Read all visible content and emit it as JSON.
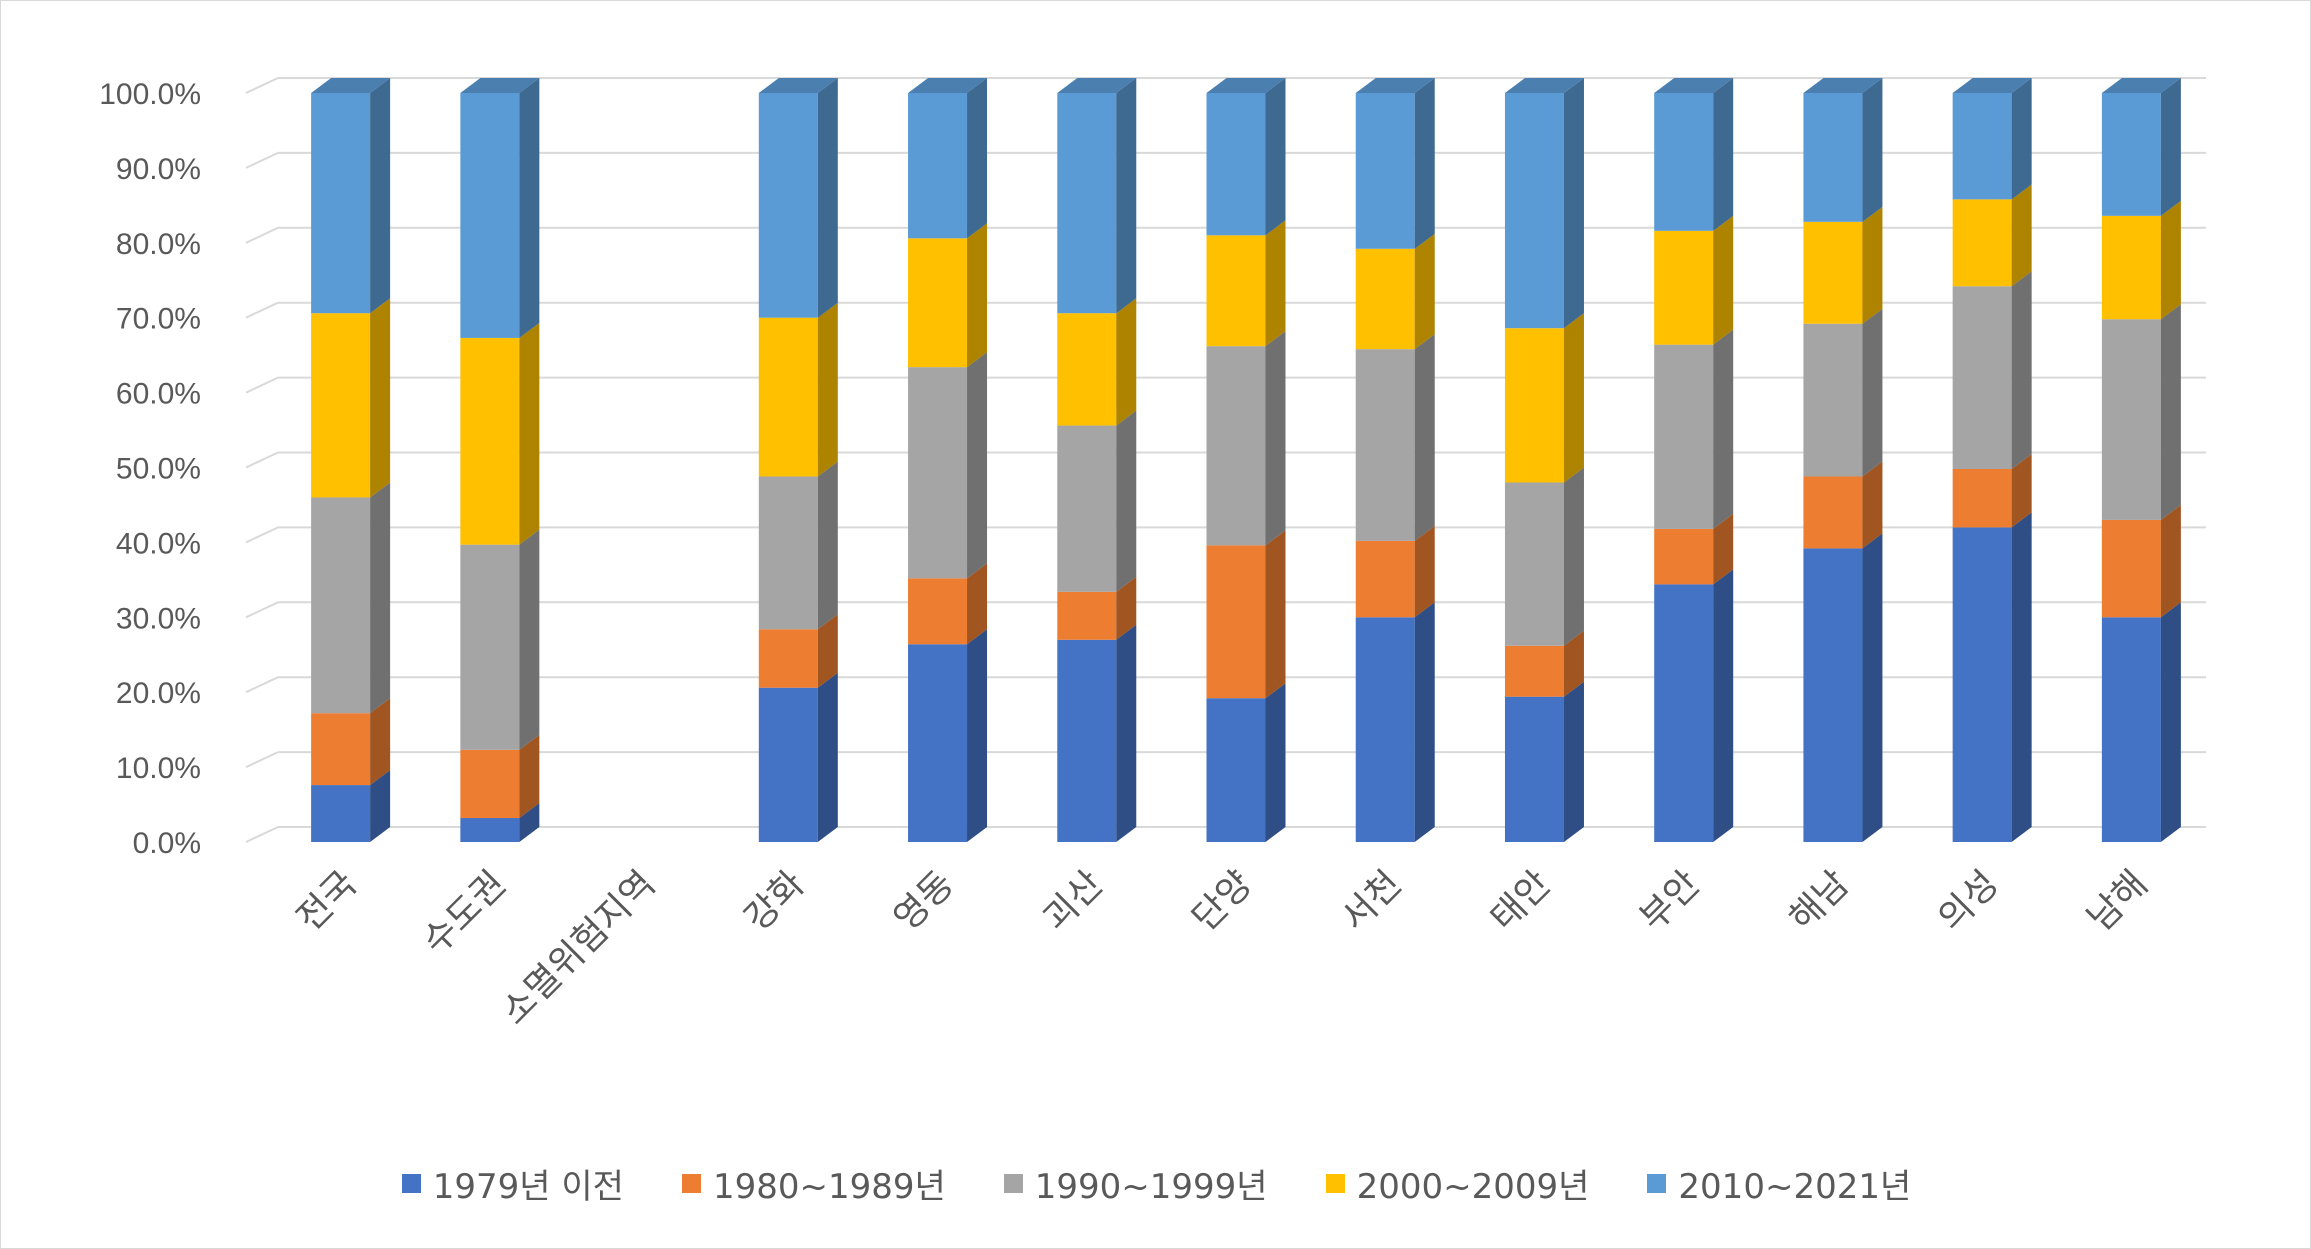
{
  "chart_data": {
    "type": "bar",
    "stacked": true,
    "three_d": true,
    "categories": [
      "전국",
      "수도권",
      "소멸위험지역",
      "강화",
      "영동",
      "괴산",
      "단양",
      "서천",
      "태안",
      "부안",
      "해남",
      "의성",
      "남해"
    ],
    "series": [
      {
        "name": "1979년 이전",
        "color": "#4472C4",
        "values": [
          7.6,
          3.2,
          0,
          20.6,
          26.4,
          27.0,
          19.2,
          30.0,
          19.4,
          34.4,
          39.2,
          42.0,
          30.0
        ]
      },
      {
        "name": "1980~1989년",
        "color": "#ED7D31",
        "values": [
          9.6,
          9.1,
          0,
          7.8,
          8.8,
          6.4,
          20.4,
          10.2,
          6.8,
          7.4,
          9.6,
          7.8,
          13.0
        ]
      },
      {
        "name": "1990~1999년",
        "color": "#A5A5A5",
        "values": [
          28.8,
          27.4,
          0,
          20.4,
          28.2,
          22.2,
          26.6,
          25.6,
          21.8,
          24.6,
          20.4,
          24.4,
          26.8
        ]
      },
      {
        "name": "2000~2009년",
        "color": "#FFC000",
        "values": [
          24.6,
          27.6,
          0,
          21.2,
          17.2,
          15.0,
          14.8,
          13.4,
          20.6,
          15.2,
          13.6,
          11.6,
          13.8
        ]
      },
      {
        "name": "2010~2021년",
        "color": "#5B9BD5",
        "values": [
          29.4,
          32.7,
          0,
          30.0,
          19.4,
          29.4,
          19.0,
          20.8,
          31.4,
          18.4,
          17.2,
          14.2,
          16.4
        ]
      }
    ],
    "ylim": [
      0,
      100
    ],
    "yticks": [
      "0.0%",
      "10.0%",
      "20.0%",
      "30.0%",
      "40.0%",
      "50.0%",
      "60.0%",
      "70.0%",
      "80.0%",
      "90.0%",
      "100.0%"
    ],
    "grid": true,
    "legend_position": "bottom",
    "title": "",
    "xlabel": "",
    "ylabel": ""
  }
}
